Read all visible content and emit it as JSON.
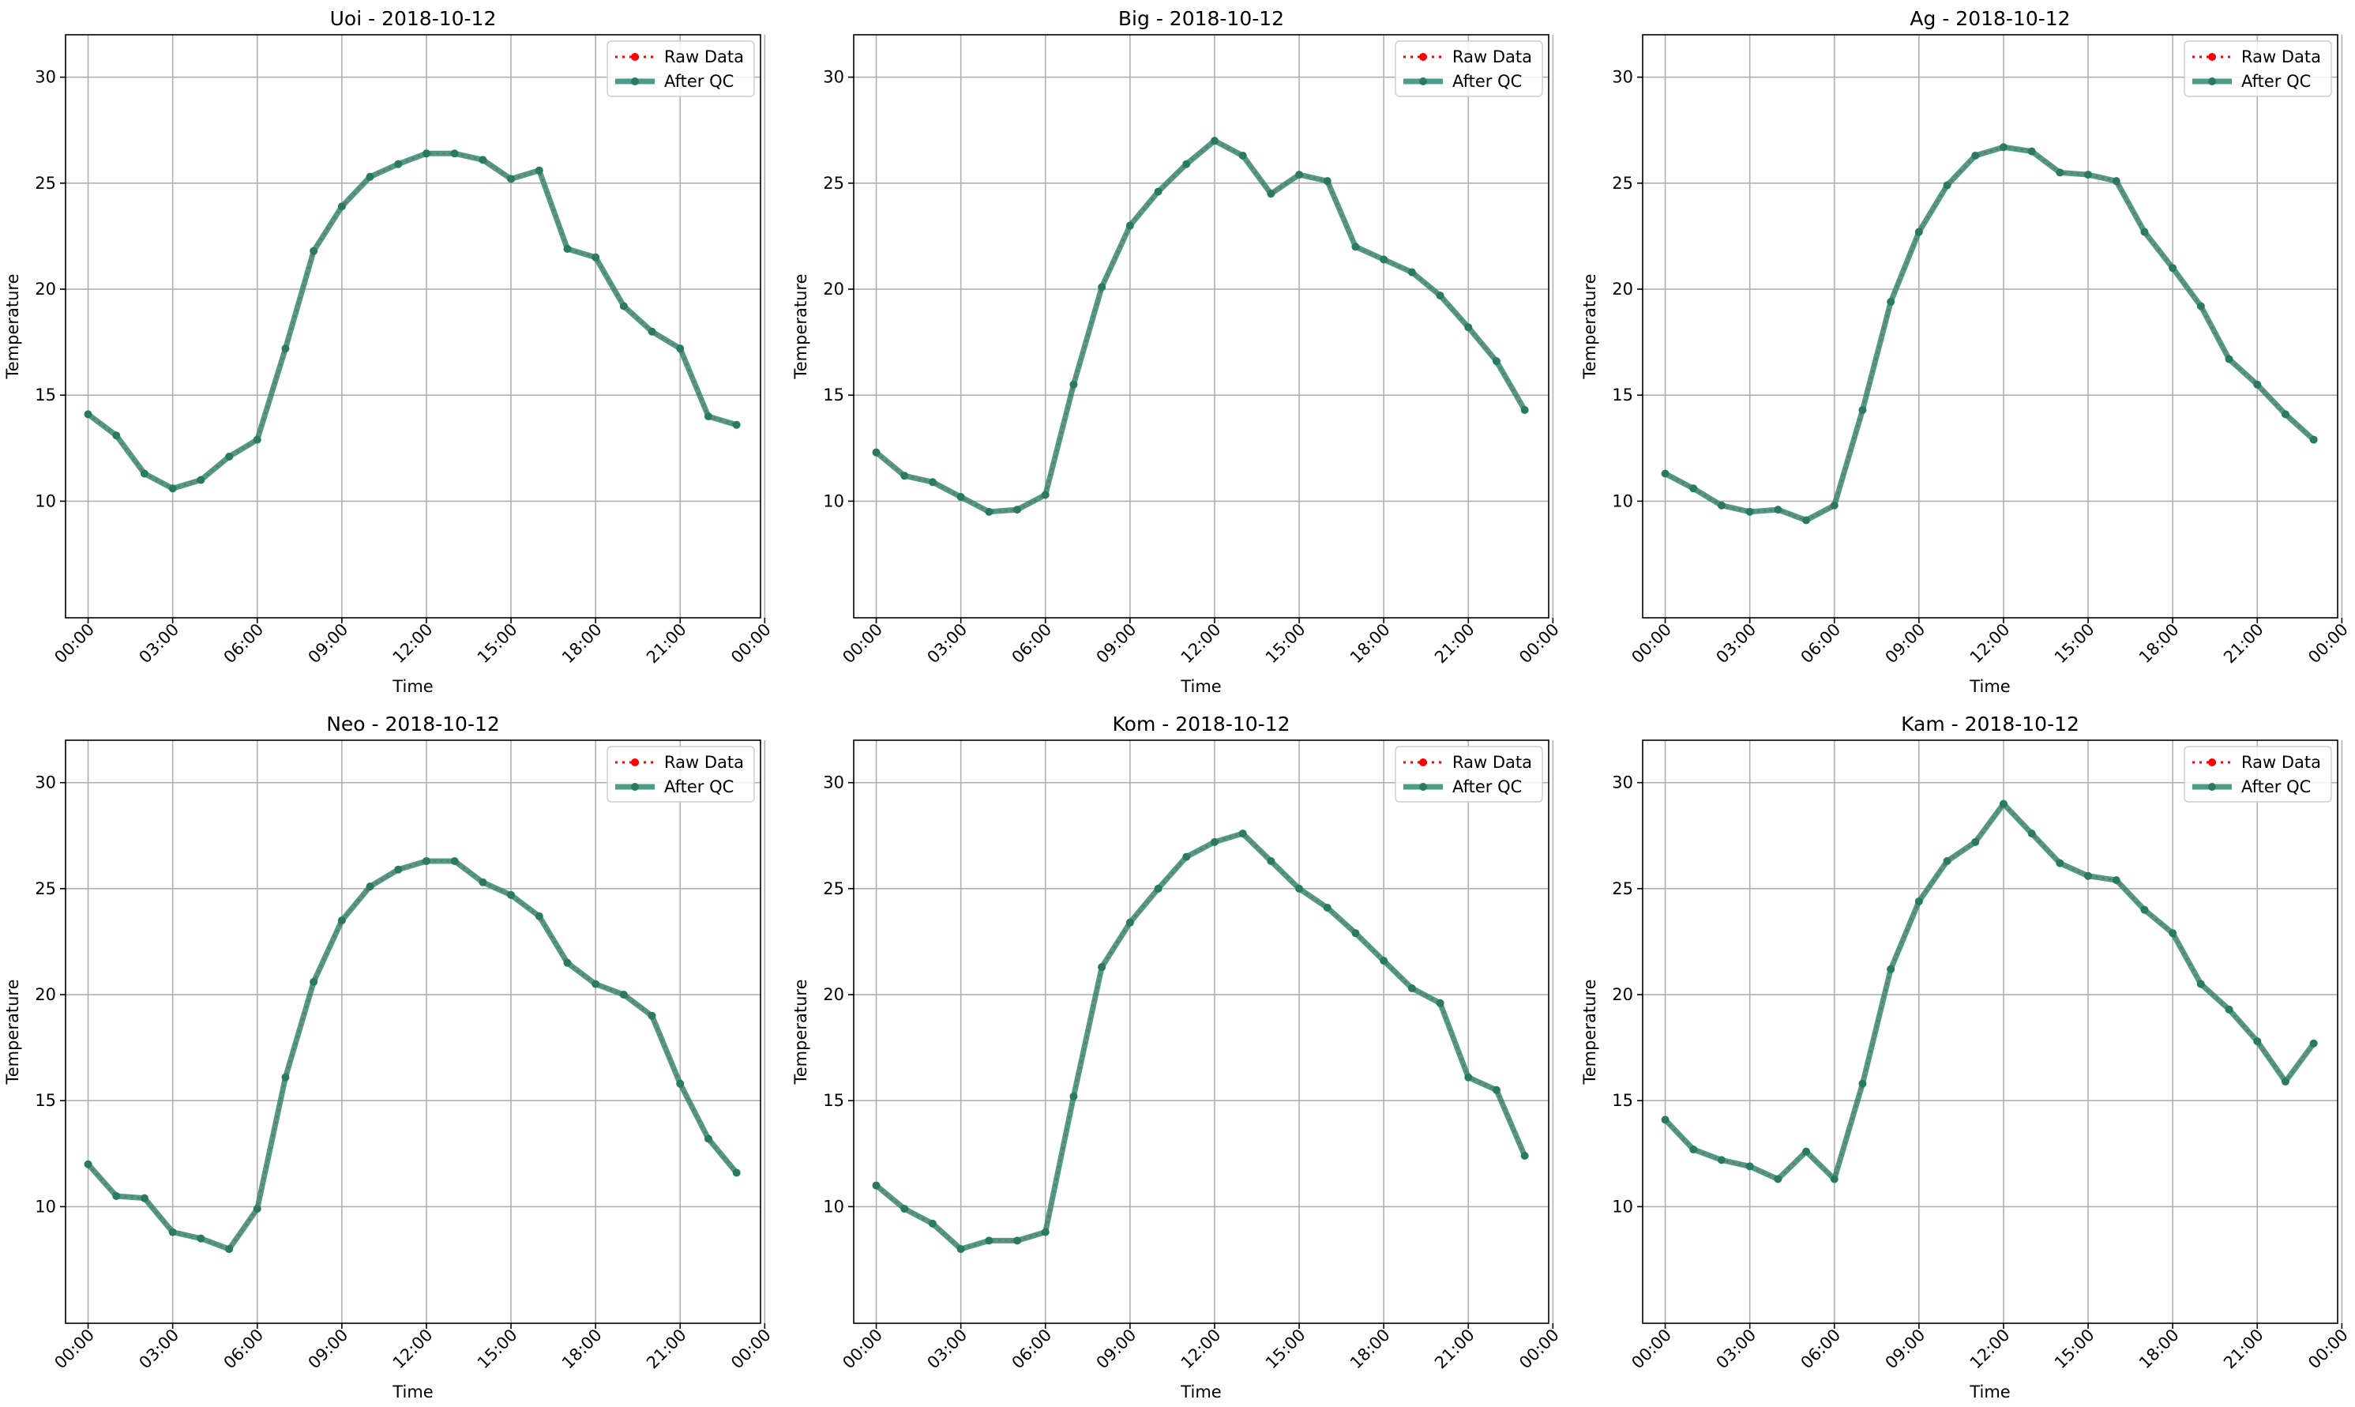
{
  "figure": {
    "xlabel": "Time",
    "ylabel": "Temperature",
    "ylim": [
      4.5,
      32
    ],
    "yticks": [
      10,
      15,
      20,
      25,
      30
    ],
    "xticks": [
      "00:00",
      "03:00",
      "06:00",
      "09:00",
      "12:00",
      "15:00",
      "18:00",
      "21:00",
      "00:00"
    ],
    "legend": {
      "placement": "top-right",
      "items": [
        "Raw Data",
        "After QC"
      ]
    },
    "colors": {
      "raw": "#ff0000",
      "qc": "#2e8b72",
      "marker": "#2a7a62",
      "grid": "#b0b0b0"
    },
    "grid": true
  },
  "chart_data": [
    {
      "type": "line",
      "title": "Uoi - 2018-10-12",
      "x": [
        "00:00",
        "01:00",
        "02:00",
        "03:00",
        "04:00",
        "05:00",
        "06:00",
        "07:00",
        "08:00",
        "09:00",
        "10:00",
        "11:00",
        "12:00",
        "13:00",
        "14:00",
        "15:00",
        "16:00",
        "17:00",
        "18:00",
        "19:00",
        "20:00",
        "21:00",
        "22:00",
        "23:00"
      ],
      "series": [
        {
          "name": "Raw Data",
          "values": [
            14.1,
            13.1,
            11.3,
            10.6,
            11.0,
            12.1,
            12.9,
            17.2,
            21.8,
            23.9,
            25.3,
            25.9,
            26.4,
            26.4,
            26.1,
            25.2,
            25.6,
            21.9,
            21.5,
            19.2,
            18.0,
            17.2,
            14.0,
            13.6
          ]
        },
        {
          "name": "After QC",
          "values": [
            14.1,
            13.1,
            11.3,
            10.6,
            11.0,
            12.1,
            12.9,
            17.2,
            21.8,
            23.9,
            25.3,
            25.9,
            26.4,
            26.4,
            26.1,
            25.2,
            25.6,
            21.9,
            21.5,
            19.2,
            18.0,
            17.2,
            14.0,
            13.6
          ]
        }
      ],
      "xlabel": "Time",
      "ylabel": "Temperature",
      "ylim": [
        4.5,
        32
      ]
    },
    {
      "type": "line",
      "title": "Big - 2018-10-12",
      "x": [
        "00:00",
        "01:00",
        "02:00",
        "03:00",
        "04:00",
        "05:00",
        "06:00",
        "07:00",
        "08:00",
        "09:00",
        "10:00",
        "11:00",
        "12:00",
        "13:00",
        "14:00",
        "15:00",
        "16:00",
        "17:00",
        "18:00",
        "19:00",
        "20:00",
        "21:00",
        "22:00",
        "23:00"
      ],
      "series": [
        {
          "name": "Raw Data",
          "values": [
            12.3,
            11.2,
            10.9,
            10.2,
            9.5,
            9.6,
            10.3,
            15.5,
            20.1,
            23.0,
            24.6,
            25.9,
            27.0,
            26.3,
            24.5,
            25.4,
            25.1,
            22.0,
            21.4,
            20.8,
            19.7,
            18.2,
            16.6,
            14.3
          ]
        },
        {
          "name": "After QC",
          "values": [
            12.3,
            11.2,
            10.9,
            10.2,
            9.5,
            9.6,
            10.3,
            15.5,
            20.1,
            23.0,
            24.6,
            25.9,
            27.0,
            26.3,
            24.5,
            25.4,
            25.1,
            22.0,
            21.4,
            20.8,
            19.7,
            18.2,
            16.6,
            14.3
          ]
        }
      ],
      "xlabel": "Time",
      "ylabel": "Temperature",
      "ylim": [
        4.5,
        32
      ]
    },
    {
      "type": "line",
      "title": "Ag - 2018-10-12",
      "x": [
        "00:00",
        "01:00",
        "02:00",
        "03:00",
        "04:00",
        "05:00",
        "06:00",
        "07:00",
        "08:00",
        "09:00",
        "10:00",
        "11:00",
        "12:00",
        "13:00",
        "14:00",
        "15:00",
        "16:00",
        "17:00",
        "18:00",
        "19:00",
        "20:00",
        "21:00",
        "22:00",
        "23:00"
      ],
      "series": [
        {
          "name": "Raw Data",
          "values": [
            11.3,
            10.6,
            9.8,
            9.5,
            9.6,
            9.1,
            9.8,
            14.3,
            19.4,
            22.7,
            24.9,
            26.3,
            26.7,
            26.5,
            25.5,
            25.4,
            25.1,
            22.7,
            21.0,
            19.2,
            16.7,
            15.5,
            14.1,
            12.9
          ]
        },
        {
          "name": "After QC",
          "values": [
            11.3,
            10.6,
            9.8,
            9.5,
            9.6,
            9.1,
            9.8,
            14.3,
            19.4,
            22.7,
            24.9,
            26.3,
            26.7,
            26.5,
            25.5,
            25.4,
            25.1,
            22.7,
            21.0,
            19.2,
            16.7,
            15.5,
            14.1,
            12.9
          ]
        }
      ],
      "xlabel": "Time",
      "ylabel": "Temperature",
      "ylim": [
        4.5,
        32
      ]
    },
    {
      "type": "line",
      "title": "Neo - 2018-10-12",
      "x": [
        "00:00",
        "01:00",
        "02:00",
        "03:00",
        "04:00",
        "05:00",
        "06:00",
        "07:00",
        "08:00",
        "09:00",
        "10:00",
        "11:00",
        "12:00",
        "13:00",
        "14:00",
        "15:00",
        "16:00",
        "17:00",
        "18:00",
        "19:00",
        "20:00",
        "21:00",
        "22:00",
        "23:00"
      ],
      "series": [
        {
          "name": "Raw Data",
          "values": [
            12.0,
            10.5,
            10.4,
            8.8,
            8.5,
            8.0,
            9.9,
            16.1,
            20.6,
            23.5,
            25.1,
            25.9,
            26.3,
            26.3,
            25.3,
            24.7,
            23.7,
            21.5,
            20.5,
            20.0,
            19.0,
            15.8,
            13.2,
            11.6
          ]
        },
        {
          "name": "After QC",
          "values": [
            12.0,
            10.5,
            10.4,
            8.8,
            8.5,
            8.0,
            9.9,
            16.1,
            20.6,
            23.5,
            25.1,
            25.9,
            26.3,
            26.3,
            25.3,
            24.7,
            23.7,
            21.5,
            20.5,
            20.0,
            19.0,
            15.8,
            13.2,
            11.6
          ]
        }
      ],
      "xlabel": "Time",
      "ylabel": "Temperature",
      "ylim": [
        4.5,
        32
      ]
    },
    {
      "type": "line",
      "title": "Kom - 2018-10-12",
      "x": [
        "00:00",
        "01:00",
        "02:00",
        "03:00",
        "04:00",
        "05:00",
        "06:00",
        "07:00",
        "08:00",
        "09:00",
        "10:00",
        "11:00",
        "12:00",
        "13:00",
        "14:00",
        "15:00",
        "16:00",
        "17:00",
        "18:00",
        "19:00",
        "20:00",
        "21:00",
        "22:00",
        "23:00"
      ],
      "series": [
        {
          "name": "Raw Data",
          "values": [
            11.0,
            9.9,
            9.2,
            8.0,
            8.4,
            8.4,
            8.8,
            15.2,
            21.3,
            23.4,
            25.0,
            26.5,
            27.2,
            27.6,
            26.3,
            25.0,
            24.1,
            22.9,
            21.6,
            20.3,
            19.6,
            16.1,
            15.5,
            12.4
          ]
        },
        {
          "name": "After QC",
          "values": [
            11.0,
            9.9,
            9.2,
            8.0,
            8.4,
            8.4,
            8.8,
            15.2,
            21.3,
            23.4,
            25.0,
            26.5,
            27.2,
            27.6,
            26.3,
            25.0,
            24.1,
            22.9,
            21.6,
            20.3,
            19.6,
            16.1,
            15.5,
            12.4
          ]
        }
      ],
      "xlabel": "Time",
      "ylabel": "Temperature",
      "ylim": [
        4.5,
        32
      ]
    },
    {
      "type": "line",
      "title": "Kam - 2018-10-12",
      "x": [
        "00:00",
        "01:00",
        "02:00",
        "03:00",
        "04:00",
        "05:00",
        "06:00",
        "07:00",
        "08:00",
        "09:00",
        "10:00",
        "11:00",
        "12:00",
        "13:00",
        "14:00",
        "15:00",
        "16:00",
        "17:00",
        "18:00",
        "19:00",
        "20:00",
        "21:00",
        "22:00",
        "23:00"
      ],
      "series": [
        {
          "name": "Raw Data",
          "values": [
            14.1,
            12.7,
            12.2,
            11.9,
            11.3,
            12.6,
            11.3,
            15.8,
            21.2,
            24.4,
            26.3,
            27.2,
            29.0,
            27.6,
            26.2,
            25.6,
            25.4,
            24.0,
            22.9,
            20.5,
            19.3,
            17.8,
            15.9,
            17.7
          ]
        },
        {
          "name": "After QC",
          "values": [
            14.1,
            12.7,
            12.2,
            11.9,
            11.3,
            12.6,
            11.3,
            15.8,
            21.2,
            24.4,
            26.3,
            27.2,
            29.0,
            27.6,
            26.2,
            25.6,
            25.4,
            24.0,
            22.9,
            20.5,
            19.3,
            17.8,
            15.9,
            17.7
          ]
        }
      ],
      "xlabel": "Time",
      "ylabel": "Temperature",
      "ylim": [
        4.5,
        32
      ]
    }
  ]
}
